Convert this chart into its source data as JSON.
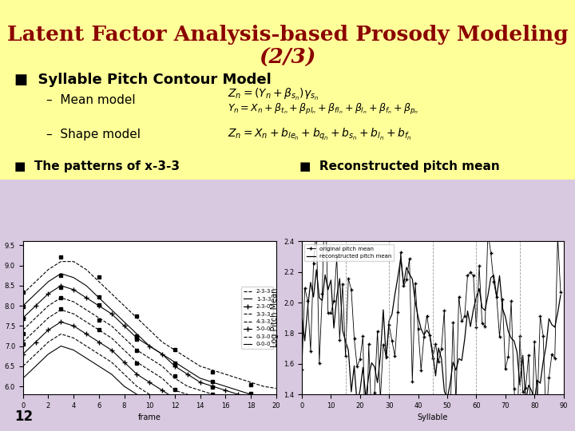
{
  "title_line1": "Latent Factor Analysis-based Prosody Modeling",
  "title_line2": "(2/3)",
  "title_color": "#8B0000",
  "bg_color": "#FFFF99",
  "bg_bottom_color": "#D8C8E0",
  "section1_header": "■  Syllable Pitch Contour Model",
  "item1": "–  Mean model",
  "item2": "–  Shape model",
  "section2a": "■  The patterns of x-3-3",
  "section2b": "■  Reconstructed pitch mean",
  "footer_num": "12",
  "text_color": "#000000"
}
